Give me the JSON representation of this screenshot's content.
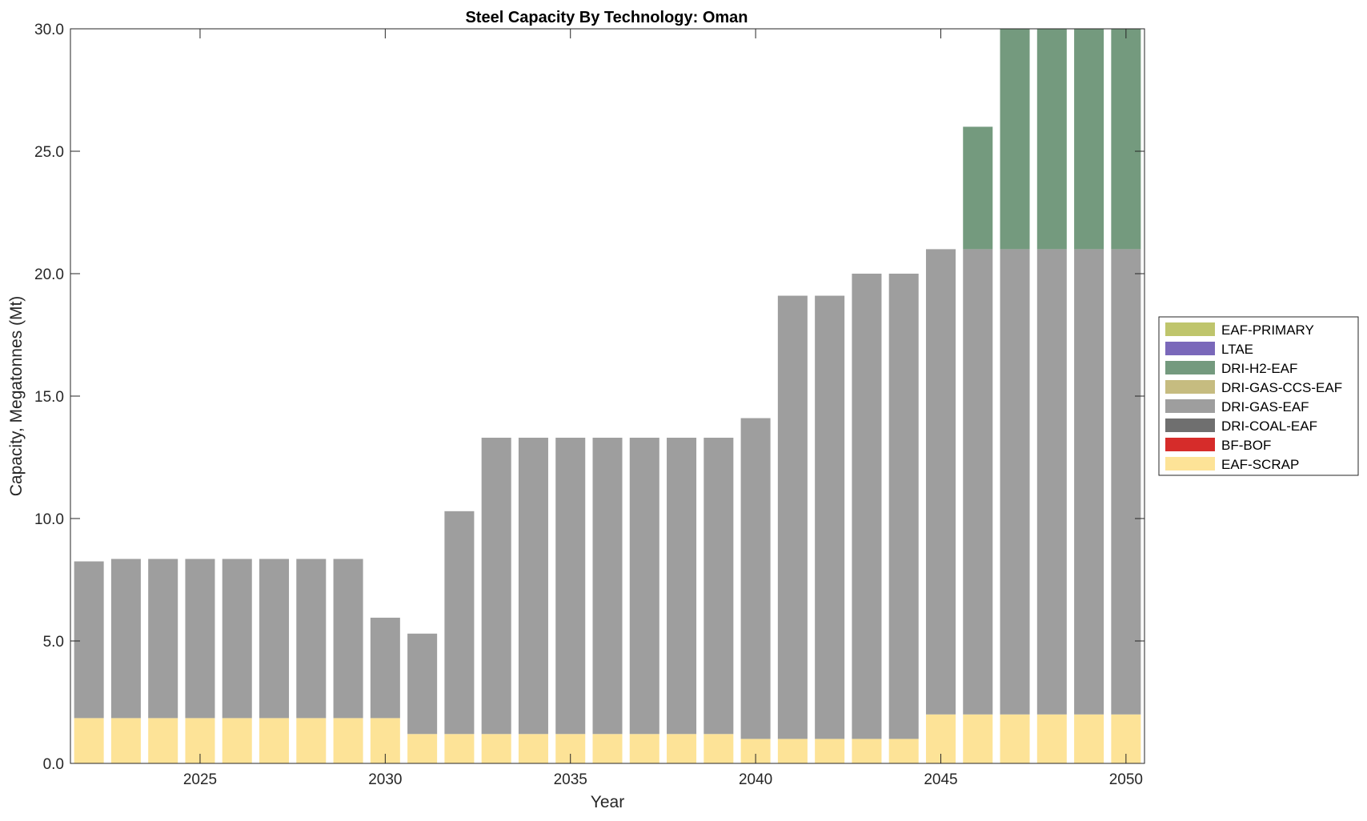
{
  "chart_data": {
    "type": "bar",
    "stacked": true,
    "title": "Steel Capacity By Technology: Oman",
    "xlabel": "Year",
    "ylabel": "Capacity, Megatonnes (Mt)",
    "xlim": [
      2021.5,
      2050.5
    ],
    "ylim": [
      0,
      30
    ],
    "xticks": [
      2025,
      2030,
      2035,
      2040,
      2045,
      2050
    ],
    "xtick_labels": [
      "2025",
      "2030",
      "2035",
      "2040",
      "2045",
      "2050"
    ],
    "yticks": [
      0,
      5,
      10,
      15,
      20,
      25,
      30
    ],
    "ytick_labels": [
      "0.0",
      "5.0",
      "10.0",
      "15.0",
      "20.0",
      "25.0",
      "30.0"
    ],
    "grid": false,
    "legend_position": "outside-right",
    "categories": [
      2022,
      2023,
      2024,
      2025,
      2026,
      2027,
      2028,
      2029,
      2030,
      2031,
      2032,
      2033,
      2034,
      2035,
      2036,
      2037,
      2038,
      2039,
      2040,
      2041,
      2042,
      2043,
      2044,
      2045,
      2046,
      2047,
      2048,
      2049,
      2050
    ],
    "series": [
      {
        "name": "EAF-SCRAP",
        "color": "#FDE397",
        "values": [
          1.85,
          1.85,
          1.85,
          1.85,
          1.85,
          1.85,
          1.85,
          1.85,
          1.85,
          1.2,
          1.2,
          1.2,
          1.2,
          1.2,
          1.2,
          1.2,
          1.2,
          1.2,
          1.0,
          1.0,
          1.0,
          1.0,
          1.0,
          2.0,
          2.0,
          2.0,
          2.0,
          2.0,
          2.0
        ]
      },
      {
        "name": "BF-BOF",
        "color": "#D62C2A",
        "values": [
          0,
          0,
          0,
          0,
          0,
          0,
          0,
          0,
          0,
          0,
          0,
          0,
          0,
          0,
          0,
          0,
          0,
          0,
          0,
          0,
          0,
          0,
          0,
          0,
          0,
          0,
          0,
          0,
          0
        ]
      },
      {
        "name": "DRI-COAL-EAF",
        "color": "#6F6F6F",
        "values": [
          0,
          0,
          0,
          0,
          0,
          0,
          0,
          0,
          0,
          0,
          0,
          0,
          0,
          0,
          0,
          0,
          0,
          0,
          0,
          0,
          0,
          0,
          0,
          0,
          0,
          0,
          0,
          0,
          0
        ]
      },
      {
        "name": "DRI-GAS-EAF",
        "color": "#9E9E9E",
        "values": [
          6.4,
          6.5,
          6.5,
          6.5,
          6.5,
          6.5,
          6.5,
          6.5,
          4.1,
          4.1,
          9.1,
          12.1,
          12.1,
          12.1,
          12.1,
          12.1,
          12.1,
          12.1,
          13.1,
          18.1,
          18.1,
          19.0,
          19.0,
          19.0,
          19.0,
          19.0,
          19.0,
          19.0,
          19.0
        ]
      },
      {
        "name": "DRI-GAS-CCS-EAF",
        "color": "#C6BC80",
        "values": [
          0,
          0,
          0,
          0,
          0,
          0,
          0,
          0,
          0,
          0,
          0,
          0,
          0,
          0,
          0,
          0,
          0,
          0,
          0,
          0,
          0,
          0,
          0,
          0,
          0,
          0,
          0,
          0,
          0
        ]
      },
      {
        "name": "DRI-H2-EAF",
        "color": "#749A7E",
        "values": [
          0,
          0,
          0,
          0,
          0,
          0,
          0,
          0,
          0,
          0,
          0,
          0,
          0,
          0,
          0,
          0,
          0,
          0,
          0,
          0,
          0,
          0,
          0,
          0,
          5.0,
          9.0,
          9.0,
          9.0,
          9.0
        ]
      },
      {
        "name": "LTAE",
        "color": "#7A68BA",
        "values": [
          0,
          0,
          0,
          0,
          0,
          0,
          0,
          0,
          0,
          0,
          0,
          0,
          0,
          0,
          0,
          0,
          0,
          0,
          0,
          0,
          0,
          0,
          0,
          0,
          0,
          0,
          0,
          0,
          0
        ]
      },
      {
        "name": "EAF-PRIMARY",
        "color": "#BFC56C",
        "values": [
          0,
          0,
          0,
          0,
          0,
          0,
          0,
          0,
          0,
          0,
          0,
          0,
          0,
          0,
          0,
          0,
          0,
          0,
          0,
          0,
          0,
          0,
          0,
          0,
          0,
          0,
          0,
          0,
          0
        ]
      }
    ],
    "legend_order": [
      "EAF-PRIMARY",
      "LTAE",
      "DRI-H2-EAF",
      "DRI-GAS-CCS-EAF",
      "DRI-GAS-EAF",
      "DRI-COAL-EAF",
      "BF-BOF",
      "EAF-SCRAP"
    ]
  }
}
